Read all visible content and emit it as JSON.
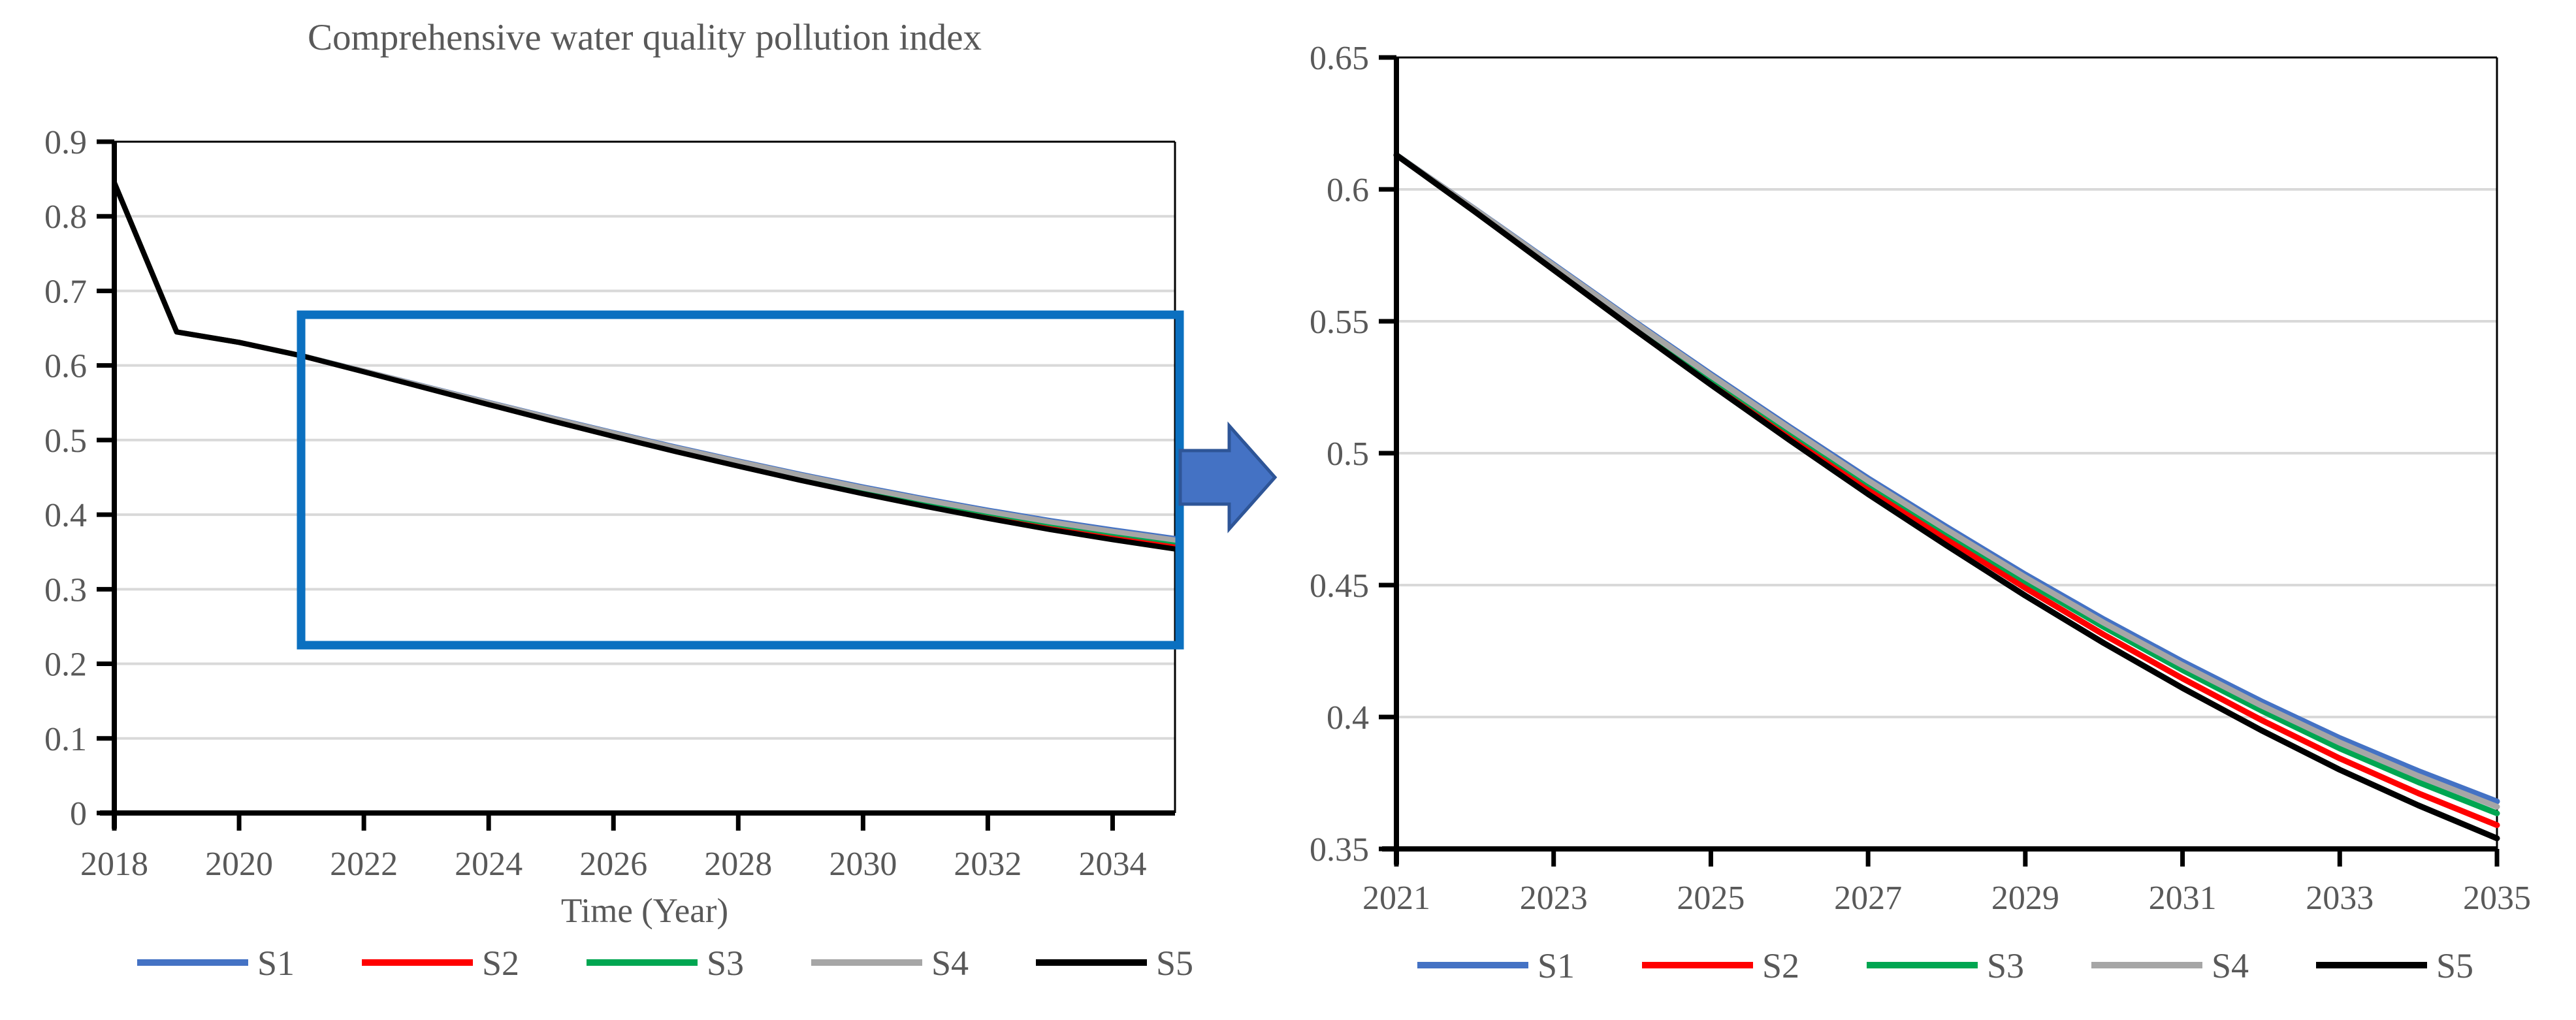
{
  "figure": {
    "background": "#ffffff",
    "text_color": "#595959",
    "grid_color": "#D9D9D9",
    "axis_color": "#000000",
    "zoom_box_color": "#0B70C0",
    "arrow_fill": "#4472C4",
    "arrow_stroke": "#2E5597",
    "arrow_meaning": "zoom-into-detail-chart"
  },
  "chart_data": [
    {
      "type": "line",
      "title": "Comprehensive water quality pollution index",
      "xlabel": "Time (Year)",
      "ylabel": "",
      "x": [
        2018,
        2019,
        2020,
        2021,
        2022,
        2023,
        2024,
        2025,
        2026,
        2027,
        2028,
        2029,
        2030,
        2031,
        2032,
        2033,
        2034,
        2035
      ],
      "xlim": [
        2018,
        2035
      ],
      "ylim": [
        0,
        0.9
      ],
      "x_tick_labels": [
        "2018",
        "2020",
        "2022",
        "2024",
        "2026",
        "2028",
        "2030",
        "2032",
        "2034"
      ],
      "x_tick_years": [
        2018,
        2020,
        2022,
        2024,
        2026,
        2028,
        2030,
        2032,
        2034
      ],
      "y_tick_labels": [
        "0",
        "0.1",
        "0.2",
        "0.3",
        "0.4",
        "0.5",
        "0.6",
        "0.7",
        "0.8",
        "0.9"
      ],
      "y_tick_values": [
        0,
        0.1,
        0.2,
        0.3,
        0.4,
        0.5,
        0.6,
        0.7,
        0.8,
        0.9
      ],
      "grid": "horizontal",
      "legend_position": "bottom",
      "series": [
        {
          "name": "S1",
          "color": "#4472C4",
          "values": [
            0.845,
            0.645,
            0.631,
            0.613,
            0.5925,
            0.5715,
            0.5505,
            0.53,
            0.51,
            0.4905,
            0.472,
            0.454,
            0.437,
            0.421,
            0.406,
            0.392,
            0.3795,
            0.368
          ]
        },
        {
          "name": "S2",
          "color": "#FF0000",
          "values": [
            0.845,
            0.645,
            0.631,
            0.613,
            0.5919,
            0.5702,
            0.5486,
            0.5274,
            0.5068,
            0.4866,
            0.4675,
            0.4489,
            0.4312,
            0.4146,
            0.3989,
            0.3843,
            0.3711,
            0.359
          ]
        },
        {
          "name": "S3",
          "color": "#00A651",
          "values": [
            0.845,
            0.645,
            0.631,
            0.613,
            0.5922,
            0.5709,
            0.5495,
            0.5287,
            0.5084,
            0.4886,
            0.4698,
            0.4514,
            0.4341,
            0.4178,
            0.4025,
            0.3881,
            0.3753,
            0.3635
          ]
        },
        {
          "name": "S4",
          "color": "#A6A6A6",
          "values": [
            0.845,
            0.645,
            0.631,
            0.613,
            0.5924,
            0.5712,
            0.5501,
            0.5294,
            0.5093,
            0.4896,
            0.471,
            0.4529,
            0.4357,
            0.4196,
            0.4044,
            0.3903,
            0.3776,
            0.366
          ]
        },
        {
          "name": "S5",
          "color": "#000000",
          "values": [
            0.845,
            0.645,
            0.631,
            0.613,
            0.5915,
            0.5695,
            0.5475,
            0.526,
            0.505,
            0.4845,
            0.465,
            0.446,
            0.428,
            0.411,
            0.395,
            0.38,
            0.3665,
            0.354
          ]
        }
      ],
      "annotations": {
        "highlight_region": {
          "x_range": [
            2021,
            2035
          ],
          "y_range": [
            0.225,
            0.67
          ],
          "style": "blue-rectangle"
        }
      }
    },
    {
      "type": "line",
      "title": "",
      "xlabel": "",
      "ylabel": "",
      "x": [
        2021,
        2022,
        2023,
        2024,
        2025,
        2026,
        2027,
        2028,
        2029,
        2030,
        2031,
        2032,
        2033,
        2034,
        2035
      ],
      "xlim": [
        2021,
        2035
      ],
      "ylim": [
        0.35,
        0.65
      ],
      "x_tick_labels": [
        "2021",
        "2023",
        "2025",
        "2027",
        "2029",
        "2031",
        "2033",
        "2035"
      ],
      "x_tick_years": [
        2021,
        2023,
        2025,
        2027,
        2029,
        2031,
        2033,
        2035
      ],
      "y_tick_labels": [
        "0.35",
        "0.4",
        "0.45",
        "0.5",
        "0.55",
        "0.6",
        "0.65"
      ],
      "y_tick_values": [
        0.35,
        0.4,
        0.45,
        0.5,
        0.55,
        0.6,
        0.65
      ],
      "grid": "horizontal",
      "legend_position": "bottom",
      "series": [
        {
          "name": "S1",
          "color": "#4472C4",
          "values": [
            0.613,
            0.5925,
            0.5715,
            0.5505,
            0.53,
            0.51,
            0.4905,
            0.472,
            0.454,
            0.437,
            0.421,
            0.406,
            0.392,
            0.3795,
            0.368
          ]
        },
        {
          "name": "S2",
          "color": "#FF0000",
          "values": [
            0.613,
            0.5919,
            0.5702,
            0.5486,
            0.5274,
            0.5068,
            0.4866,
            0.4675,
            0.4489,
            0.4312,
            0.4146,
            0.3989,
            0.3843,
            0.3711,
            0.359
          ]
        },
        {
          "name": "S3",
          "color": "#00A651",
          "values": [
            0.613,
            0.5922,
            0.5709,
            0.5495,
            0.5287,
            0.5084,
            0.4886,
            0.4698,
            0.4514,
            0.4341,
            0.4178,
            0.4025,
            0.3881,
            0.3753,
            0.3635
          ]
        },
        {
          "name": "S4",
          "color": "#A6A6A6",
          "values": [
            0.613,
            0.5924,
            0.5712,
            0.5501,
            0.5294,
            0.5093,
            0.4896,
            0.471,
            0.4529,
            0.4357,
            0.4196,
            0.4044,
            0.3903,
            0.3776,
            0.366
          ]
        },
        {
          "name": "S5",
          "color": "#000000",
          "values": [
            0.613,
            0.5915,
            0.5695,
            0.5475,
            0.526,
            0.505,
            0.4845,
            0.465,
            0.446,
            0.428,
            0.411,
            0.395,
            0.38,
            0.3665,
            0.354
          ]
        }
      ],
      "annotations": {}
    }
  ]
}
